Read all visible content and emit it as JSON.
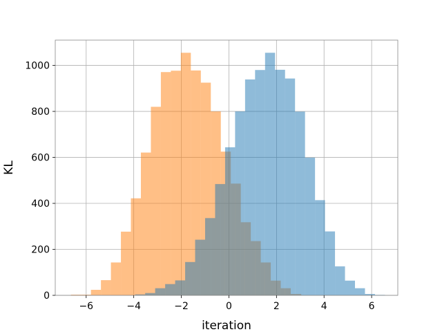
{
  "chart_data": {
    "type": "bar",
    "title": "",
    "xlabel": "iteration",
    "ylabel": "KL",
    "xlim": [
      -7.3,
      7.1
    ],
    "ylim": [
      0,
      1110
    ],
    "xticks": [
      -6,
      -4,
      -2,
      0,
      2,
      4,
      6
    ],
    "xtick_labels": [
      "−6",
      "−4",
      "−2",
      "0",
      "2",
      "4",
      "6"
    ],
    "yticks": [
      0,
      200,
      400,
      600,
      800,
      1000
    ],
    "ytick_labels": [
      "0",
      "200",
      "400",
      "600",
      "800",
      "1000"
    ],
    "grid": true,
    "series": [
      {
        "color": "#ff7f0e",
        "alpha": 0.5,
        "bin_edges": [
          -6.64,
          -6.22,
          -5.8,
          -5.38,
          -4.96,
          -4.54,
          -4.12,
          -3.7,
          -3.28,
          -2.86,
          -2.44,
          -2.02,
          -1.6,
          -1.18,
          -0.76,
          -0.34,
          0.08,
          0.5,
          0.92,
          1.34,
          1.76,
          2.18,
          2.6,
          3.04
        ],
        "counts": [
          3,
          3,
          24,
          66,
          143,
          277,
          422,
          621,
          820,
          971,
          977,
          1055,
          978,
          925,
          800,
          625,
          486,
          318,
          236,
          143,
          64,
          31,
          6
        ]
      },
      {
        "color": "#1f77b4",
        "alpha": 0.5,
        "bin_edges": [
          -3.94,
          -3.52,
          -3.1,
          -2.68,
          -2.26,
          -1.84,
          -1.42,
          -1.0,
          -0.58,
          -0.16,
          0.26,
          0.68,
          1.1,
          1.52,
          1.94,
          2.36,
          2.78,
          3.2,
          3.62,
          4.04,
          4.46,
          4.88,
          5.3,
          5.72,
          6.14,
          6.56
        ],
        "counts": [
          4,
          10,
          31,
          49,
          65,
          145,
          242,
          336,
          484,
          644,
          800,
          939,
          980,
          1055,
          981,
          943,
          799,
          599,
          414,
          278,
          126,
          64,
          31,
          6,
          2
        ]
      }
    ]
  }
}
